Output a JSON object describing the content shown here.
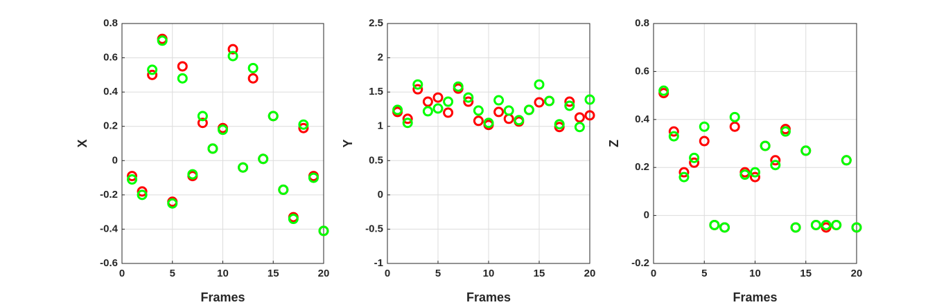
{
  "chart_data": [
    {
      "type": "scatter",
      "xlabel": "Frames",
      "ylabel": "X",
      "x": [
        1,
        2,
        3,
        4,
        5,
        6,
        7,
        8,
        9,
        10,
        11,
        12,
        13,
        14,
        15,
        16,
        17,
        18,
        19,
        20
      ],
      "series": [
        {
          "color": "#ff0000",
          "values": [
            -0.09,
            -0.18,
            0.5,
            0.71,
            -0.24,
            0.55,
            -0.09,
            0.22,
            0.07,
            0.19,
            0.65,
            -0.04,
            0.48,
            0.01,
            0.26,
            -0.17,
            -0.33,
            0.19,
            -0.09,
            -0.41
          ]
        },
        {
          "color": "#00ff00",
          "values": [
            -0.11,
            -0.2,
            0.53,
            0.7,
            -0.25,
            0.48,
            -0.08,
            0.26,
            0.07,
            0.18,
            0.61,
            -0.04,
            0.54,
            0.01,
            0.26,
            -0.17,
            -0.34,
            0.21,
            -0.1,
            -0.41
          ]
        }
      ],
      "xlim": [
        0,
        20
      ],
      "xticks": [
        0,
        5,
        10,
        15,
        20
      ],
      "ylim": [
        -0.6,
        0.8
      ],
      "yticks": [
        -0.6,
        -0.4,
        -0.2,
        0,
        0.2,
        0.4,
        0.6,
        0.8
      ],
      "grid": true
    },
    {
      "type": "scatter",
      "xlabel": "Frames",
      "ylabel": "Y",
      "x": [
        1,
        2,
        3,
        4,
        5,
        6,
        7,
        8,
        9,
        10,
        11,
        12,
        13,
        14,
        15,
        16,
        17,
        18,
        19,
        20
      ],
      "series": [
        {
          "color": "#ff0000",
          "values": [
            1.21,
            1.11,
            1.54,
            1.36,
            1.42,
            1.2,
            1.55,
            1.36,
            1.08,
            1.02,
            1.21,
            1.11,
            1.07,
            1.24,
            1.35,
            1.37,
            0.99,
            1.36,
            1.13,
            1.16
          ]
        },
        {
          "color": "#00ff00",
          "values": [
            1.24,
            1.05,
            1.61,
            1.22,
            1.26,
            1.36,
            1.58,
            1.42,
            1.23,
            1.05,
            1.38,
            1.23,
            1.09,
            1.24,
            1.61,
            1.37,
            1.03,
            1.3,
            0.99,
            1.39
          ]
        }
      ],
      "xlim": [
        0,
        20
      ],
      "xticks": [
        0,
        5,
        10,
        15,
        20
      ],
      "ylim": [
        -1,
        2.5
      ],
      "yticks": [
        -1,
        -0.5,
        0,
        0.5,
        1,
        1.5,
        2,
        2.5
      ],
      "grid": true
    },
    {
      "type": "scatter",
      "xlabel": "Frames",
      "ylabel": "Z",
      "x": [
        1,
        2,
        3,
        4,
        5,
        6,
        7,
        8,
        9,
        10,
        11,
        12,
        13,
        14,
        15,
        16,
        17,
        18,
        19,
        20
      ],
      "series": [
        {
          "color": "#ff0000",
          "values": [
            0.51,
            0.35,
            0.18,
            0.22,
            0.31,
            -0.04,
            -0.05,
            0.37,
            0.18,
            0.16,
            0.29,
            0.23,
            0.36,
            -0.05,
            0.27,
            -0.04,
            -0.05,
            -0.04,
            0.23,
            -0.05
          ]
        },
        {
          "color": "#00ff00",
          "values": [
            0.52,
            0.33,
            0.16,
            0.24,
            0.37,
            -0.04,
            -0.05,
            0.41,
            0.17,
            0.18,
            0.29,
            0.21,
            0.35,
            -0.05,
            0.27,
            -0.04,
            -0.04,
            -0.04,
            0.23,
            -0.05
          ]
        }
      ],
      "xlim": [
        0,
        20
      ],
      "xticks": [
        0,
        5,
        10,
        15,
        20
      ],
      "ylim": [
        -0.2,
        0.8
      ],
      "yticks": [
        -0.2,
        0,
        0.2,
        0.4,
        0.6,
        0.8
      ],
      "grid": true
    }
  ]
}
